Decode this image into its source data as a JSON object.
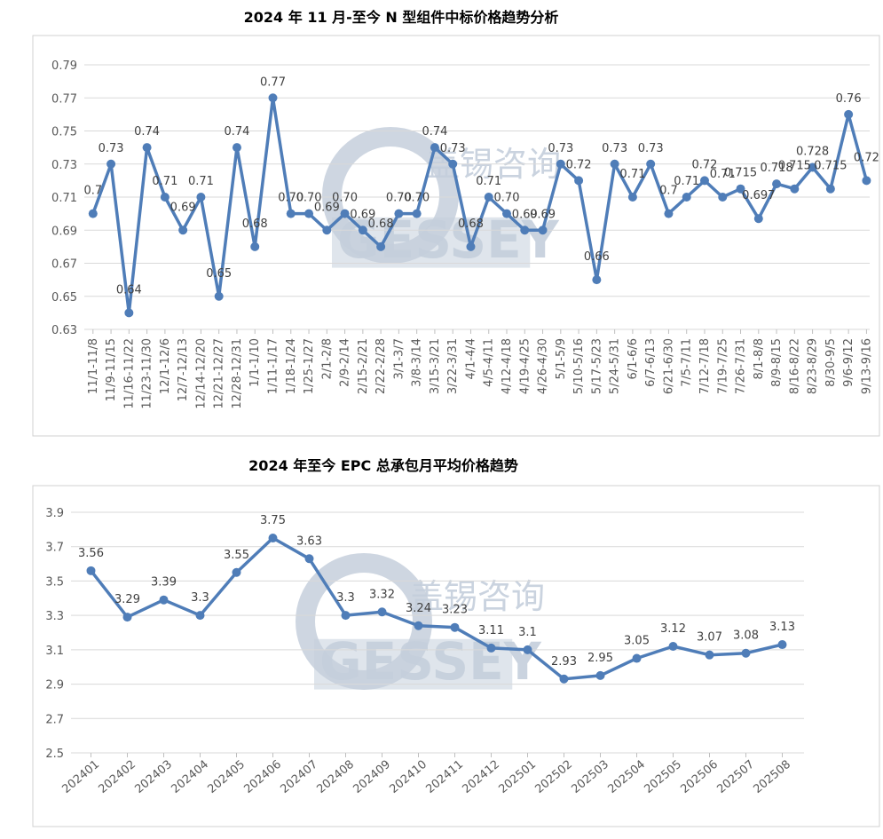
{
  "watermark": {
    "cn": "盖锡咨询",
    "en": "GESSEY"
  },
  "chart_data": [
    {
      "type": "line",
      "title": "2024 年 11 月-至今 N 型组件中标价格趋势分析",
      "ylim": [
        0.63,
        0.79
      ],
      "yticks": [
        "0.63",
        "0.65",
        "0.67",
        "0.69",
        "0.71",
        "0.73",
        "0.75",
        "0.77",
        "0.79"
      ],
      "grid": true,
      "color": "#4f7db8",
      "categories": [
        "11/1-11/8",
        "11/9-11/15",
        "11/16-11/22",
        "11/23-11/30",
        "12/1-12/6",
        "12/7-12/13",
        "12/14-12/20",
        "12/21-12/27",
        "12/28-12/31",
        "1/1-1/10",
        "1/11-1/17",
        "1/18-1/24",
        "1/25-1/27",
        "2/1-2/8",
        "2/9-2/14",
        "2/15-2/21",
        "2/22-2/28",
        "3/1-3/7",
        "3/8-3/14",
        "3/15-3/21",
        "3/22-3/31",
        "4/1-4/4",
        "4/5-4/11",
        "4/12-4/18",
        "4/19-4/25",
        "4/26-4/30",
        "5/1-5/9",
        "5/10-5/16",
        "5/17-5/23",
        "5/24-5/31",
        "6/1-6/6",
        "6/7-6/13",
        "6/21-6/30",
        "7/5-7/11",
        "7/12-7/18",
        "7/19-7/25",
        "7/26-7/31",
        "8/1-8/8",
        "8/9-8/15",
        "8/16-8/22",
        "8/23-8/29",
        "8/30-9/5",
        "9/6-9/12",
        "9/13-9/16"
      ],
      "values": [
        0.7,
        0.73,
        0.64,
        0.74,
        0.71,
        0.69,
        0.71,
        0.65,
        0.74,
        0.68,
        0.77,
        0.7,
        0.7,
        0.69,
        0.7,
        0.69,
        0.68,
        0.7,
        0.7,
        0.74,
        0.73,
        0.68,
        0.71,
        0.7,
        0.69,
        0.69,
        0.73,
        0.72,
        0.66,
        0.73,
        0.71,
        0.73,
        0.7,
        0.71,
        0.72,
        0.71,
        0.715,
        0.697,
        0.718,
        0.715,
        0.728,
        0.715,
        0.76,
        0.72
      ],
      "labels": [
        "0.7",
        "0.73",
        "0.64",
        "0.74",
        "0.71",
        "0.69",
        "0.71",
        "0.65",
        "0.74",
        "0.68",
        "0.77",
        "0.70",
        "0.70",
        "0.69",
        "0.70",
        "0.69",
        "0.68",
        "0.70",
        "0.70",
        "0.74",
        "0.73",
        "0.68",
        "0.71",
        "0.70",
        "0.69",
        "0.69",
        "0.73",
        "0.72",
        "0.66",
        "0.73",
        "0.71",
        "0.73",
        "0.7",
        "0.71",
        "0.72",
        "0.71",
        "0.715",
        "0.697",
        "0.718",
        "0.715",
        "0.728",
        "0.715",
        "0.76",
        "0.72"
      ]
    },
    {
      "type": "line",
      "title": "2024 年至今 EPC 总承包月平均价格趋势",
      "ylim": [
        2.5,
        3.9
      ],
      "yticks": [
        "2.5",
        "2.7",
        "2.9",
        "3.1",
        "3.3",
        "3.5",
        "3.7",
        "3.9"
      ],
      "grid": true,
      "color": "#4f7db8",
      "categories": [
        "202401",
        "202402",
        "202403",
        "202404",
        "202405",
        "202406",
        "202407",
        "202408",
        "202409",
        "202410",
        "202411",
        "202412",
        "202501",
        "202502",
        "202503",
        "202504",
        "202505",
        "202506",
        "202507",
        "202508"
      ],
      "values": [
        3.56,
        3.29,
        3.39,
        3.3,
        3.55,
        3.75,
        3.63,
        3.3,
        3.32,
        3.24,
        3.23,
        3.11,
        3.1,
        2.93,
        2.95,
        3.05,
        3.12,
        3.07,
        3.08,
        3.13
      ],
      "labels": [
        "3.56",
        "3.29",
        "3.39",
        "3.3",
        "3.55",
        "3.75",
        "3.63",
        "3.3",
        "3.32",
        "3.24",
        "3.23",
        "3.11",
        "3.1",
        "2.93",
        "2.95",
        "3.05",
        "3.12",
        "3.07",
        "3.08",
        "3.13"
      ]
    }
  ]
}
